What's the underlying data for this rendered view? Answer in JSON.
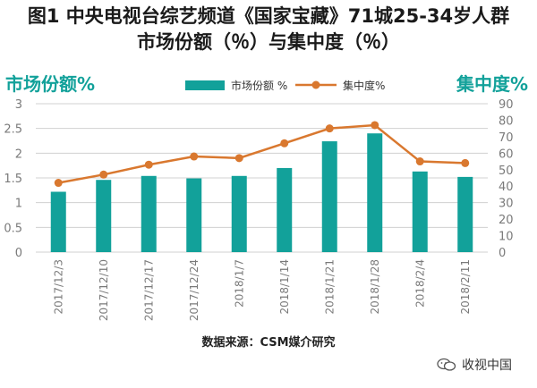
{
  "title_line1": "图1 中央电视台综艺频道《国家宝藏》71城25-34岁人群",
  "title_line2": "市场份额（％）与集中度（％）",
  "left_axis_title": "市场份额%",
  "right_axis_title": "集中度%",
  "source": "数据来源：CSM媒介研究",
  "watermark": "收视中国",
  "colors": {
    "bar": "#12a19a",
    "line": "#d9782f",
    "grid": "#d0d0d0",
    "axis_text": "#7a7a7a"
  },
  "chart_data": {
    "type": "bar",
    "categories": [
      "2017/12/3",
      "2017/12/10",
      "2017/12/17",
      "2017/12/24",
      "2018/1/7",
      "2018/1/14",
      "2018/1/21",
      "2018/1/28",
      "2018/2/4",
      "2018/2/11"
    ],
    "left_axis": {
      "min": 0,
      "max": 3,
      "step": 0.5,
      "ticks": [
        "0",
        "0.5",
        "1",
        "1.5",
        "2",
        "2.5",
        "3"
      ]
    },
    "right_axis": {
      "min": 0,
      "max": 90,
      "step": 10,
      "ticks": [
        "0",
        "10",
        "20",
        "30",
        "40",
        "50",
        "60",
        "70",
        "80",
        "90"
      ]
    },
    "series": [
      {
        "name": "市场份额 %",
        "kind": "bar",
        "axis": "left",
        "values": [
          1.22,
          1.46,
          1.54,
          1.49,
          1.54,
          1.7,
          2.24,
          2.4,
          1.63,
          1.52
        ]
      },
      {
        "name": "集中度%",
        "kind": "line",
        "axis": "right",
        "values": [
          42,
          47,
          53,
          58,
          57,
          66,
          75,
          77,
          55,
          54
        ]
      }
    ],
    "grid": true,
    "legend": "top"
  }
}
